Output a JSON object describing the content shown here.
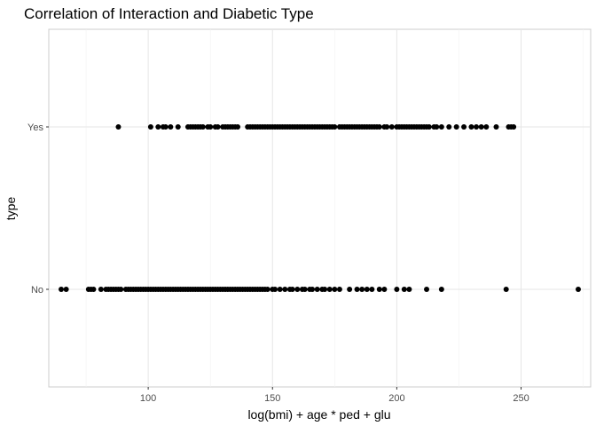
{
  "chart_data": {
    "type": "scatter",
    "title": "Correlation of Interaction and Diabetic Type",
    "xlabel": "log(bmi) + age * ped + glu",
    "ylabel": "type",
    "xlim": [
      60,
      278
    ],
    "x_ticks": [
      100,
      150,
      200,
      250
    ],
    "x_minor_ticks": [
      75,
      125,
      175,
      225,
      275
    ],
    "categories": [
      "No",
      "Yes"
    ],
    "grid": true,
    "point_color": "#000000",
    "series": [
      {
        "category": "Yes",
        "x": [
          88,
          101,
          104,
          106,
          107,
          109,
          112,
          116,
          117,
          118,
          119,
          120,
          121,
          122,
          124,
          125,
          127,
          128,
          130,
          131,
          132,
          133,
          134,
          135,
          136,
          140,
          141,
          142,
          143,
          144,
          145,
          146,
          147,
          148,
          149,
          150,
          151,
          152,
          153,
          154,
          155,
          156,
          157,
          158,
          159,
          160,
          161,
          162,
          163,
          164,
          165,
          166,
          167,
          168,
          169,
          170,
          171,
          172,
          173,
          174,
          175,
          177,
          178,
          179,
          180,
          181,
          182,
          183,
          184,
          185,
          186,
          187,
          188,
          189,
          190,
          191,
          192,
          193,
          195,
          196,
          198,
          200,
          201,
          202,
          203,
          204,
          205,
          206,
          207,
          208,
          209,
          210,
          211,
          212,
          213,
          215,
          216,
          218,
          221,
          224,
          227,
          230,
          232,
          234,
          236,
          240,
          245,
          246,
          247
        ]
      },
      {
        "category": "No",
        "x": [
          65,
          67,
          76,
          77,
          78,
          81,
          83,
          84,
          85,
          86,
          87,
          88,
          89,
          91,
          92,
          93,
          94,
          95,
          96,
          97,
          98,
          99,
          100,
          101,
          102,
          103,
          104,
          105,
          106,
          107,
          108,
          109,
          110,
          111,
          112,
          113,
          114,
          115,
          116,
          117,
          118,
          119,
          120,
          121,
          122,
          123,
          124,
          125,
          126,
          127,
          128,
          129,
          130,
          131,
          132,
          133,
          134,
          135,
          136,
          137,
          138,
          139,
          140,
          141,
          142,
          143,
          144,
          145,
          146,
          147,
          148,
          150,
          151,
          153,
          155,
          157,
          158,
          160,
          162,
          163,
          165,
          166,
          168,
          170,
          171,
          173,
          175,
          177,
          181,
          184,
          186,
          188,
          190,
          193,
          195,
          200,
          203,
          205,
          212,
          218,
          244,
          273
        ]
      }
    ]
  }
}
